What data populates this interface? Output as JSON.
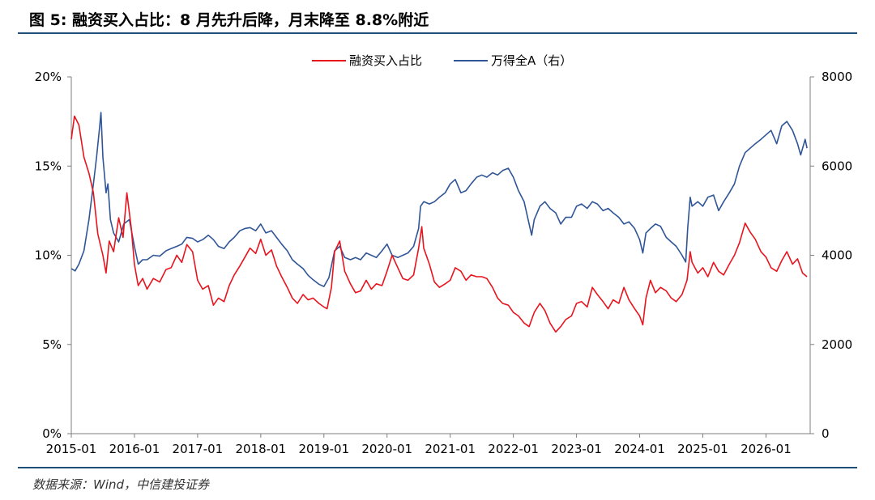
{
  "header": {
    "title": "图 5: 融资买入占比：8 月先升后降，月末降至 8.8%附近"
  },
  "footer": {
    "source": "数据来源：Wind，中信建投证券"
  },
  "chart_data": {
    "type": "line",
    "title": "",
    "xlabel": "",
    "ylabel": "",
    "y2label": "",
    "x_ticks": [
      "2015-01",
      "2016-01",
      "2017-01",
      "2018-01",
      "2019-01",
      "2020-01",
      "2021-01",
      "2022-01",
      "2023-01",
      "2024-01",
      "2025-01",
      "2026-01"
    ],
    "x_range": [
      2015.0,
      2026.7
    ],
    "y_left": {
      "ticks": [
        "0%",
        "5%",
        "10%",
        "15%",
        "20%"
      ],
      "range": [
        0,
        20
      ],
      "unit": "%"
    },
    "y_right": {
      "ticks": [
        "0",
        "2000",
        "4000",
        "6000",
        "8000"
      ],
      "range": [
        0,
        8000
      ]
    },
    "legend": {
      "placement": "top-center"
    },
    "grid": false,
    "series": [
      {
        "name": "融资买入占比",
        "axis": "left",
        "color": "#e8141e",
        "points": [
          [
            2015.0,
            16.5
          ],
          [
            2015.05,
            17.8
          ],
          [
            2015.12,
            17.3
          ],
          [
            2015.2,
            15.5
          ],
          [
            2015.28,
            14.6
          ],
          [
            2015.35,
            13.5
          ],
          [
            2015.42,
            11.2
          ],
          [
            2015.5,
            10.0
          ],
          [
            2015.55,
            9.0
          ],
          [
            2015.6,
            10.8
          ],
          [
            2015.67,
            10.2
          ],
          [
            2015.75,
            12.1
          ],
          [
            2015.82,
            11.0
          ],
          [
            2015.88,
            13.5
          ],
          [
            2015.95,
            11.5
          ],
          [
            2016.0,
            9.5
          ],
          [
            2016.06,
            8.3
          ],
          [
            2016.13,
            8.7
          ],
          [
            2016.2,
            8.1
          ],
          [
            2016.3,
            8.7
          ],
          [
            2016.4,
            8.5
          ],
          [
            2016.5,
            9.2
          ],
          [
            2016.58,
            9.3
          ],
          [
            2016.67,
            10.0
          ],
          [
            2016.75,
            9.6
          ],
          [
            2016.83,
            10.6
          ],
          [
            2016.92,
            10.2
          ],
          [
            2017.0,
            8.6
          ],
          [
            2017.08,
            8.1
          ],
          [
            2017.17,
            8.3
          ],
          [
            2017.25,
            7.2
          ],
          [
            2017.33,
            7.6
          ],
          [
            2017.42,
            7.4
          ],
          [
            2017.5,
            8.3
          ],
          [
            2017.58,
            8.9
          ],
          [
            2017.67,
            9.4
          ],
          [
            2017.75,
            9.9
          ],
          [
            2017.83,
            10.4
          ],
          [
            2017.92,
            10.1
          ],
          [
            2018.0,
            10.9
          ],
          [
            2018.08,
            10.0
          ],
          [
            2018.17,
            10.3
          ],
          [
            2018.25,
            9.4
          ],
          [
            2018.33,
            8.8
          ],
          [
            2018.42,
            8.2
          ],
          [
            2018.5,
            7.6
          ],
          [
            2018.58,
            7.3
          ],
          [
            2018.67,
            7.8
          ],
          [
            2018.75,
            7.5
          ],
          [
            2018.83,
            7.6
          ],
          [
            2018.92,
            7.3
          ],
          [
            2019.0,
            7.1
          ],
          [
            2019.05,
            7.0
          ],
          [
            2019.12,
            8.2
          ],
          [
            2019.17,
            10.2
          ],
          [
            2019.25,
            10.8
          ],
          [
            2019.33,
            9.1
          ],
          [
            2019.42,
            8.4
          ],
          [
            2019.5,
            7.9
          ],
          [
            2019.58,
            8.0
          ],
          [
            2019.67,
            8.6
          ],
          [
            2019.75,
            8.1
          ],
          [
            2019.83,
            8.4
          ],
          [
            2019.92,
            8.3
          ],
          [
            2020.0,
            9.1
          ],
          [
            2020.08,
            10.0
          ],
          [
            2020.17,
            9.3
          ],
          [
            2020.25,
            8.7
          ],
          [
            2020.33,
            8.6
          ],
          [
            2020.42,
            8.9
          ],
          [
            2020.5,
            10.4
          ],
          [
            2020.55,
            11.6
          ],
          [
            2020.58,
            10.4
          ],
          [
            2020.67,
            9.5
          ],
          [
            2020.75,
            8.5
          ],
          [
            2020.83,
            8.2
          ],
          [
            2020.92,
            8.4
          ],
          [
            2021.0,
            8.6
          ],
          [
            2021.08,
            9.3
          ],
          [
            2021.17,
            9.1
          ],
          [
            2021.25,
            8.6
          ],
          [
            2021.33,
            8.9
          ],
          [
            2021.42,
            8.8
          ],
          [
            2021.5,
            8.8
          ],
          [
            2021.58,
            8.7
          ],
          [
            2021.67,
            8.2
          ],
          [
            2021.75,
            7.6
          ],
          [
            2021.83,
            7.3
          ],
          [
            2021.92,
            7.2
          ],
          [
            2022.0,
            6.8
          ],
          [
            2022.08,
            6.6
          ],
          [
            2022.17,
            6.2
          ],
          [
            2022.25,
            6.0
          ],
          [
            2022.33,
            6.8
          ],
          [
            2022.42,
            7.3
          ],
          [
            2022.5,
            6.9
          ],
          [
            2022.58,
            6.2
          ],
          [
            2022.67,
            5.7
          ],
          [
            2022.75,
            6.0
          ],
          [
            2022.83,
            6.4
          ],
          [
            2022.92,
            6.6
          ],
          [
            2023.0,
            7.3
          ],
          [
            2023.08,
            7.4
          ],
          [
            2023.17,
            7.1
          ],
          [
            2023.25,
            8.2
          ],
          [
            2023.33,
            7.8
          ],
          [
            2023.42,
            7.4
          ],
          [
            2023.5,
            7.0
          ],
          [
            2023.58,
            7.5
          ],
          [
            2023.67,
            7.3
          ],
          [
            2023.75,
            8.2
          ],
          [
            2023.83,
            7.5
          ],
          [
            2023.92,
            7.0
          ],
          [
            2024.0,
            6.6
          ],
          [
            2024.05,
            6.1
          ],
          [
            2024.1,
            7.6
          ],
          [
            2024.17,
            8.6
          ],
          [
            2024.25,
            7.9
          ],
          [
            2024.33,
            8.2
          ],
          [
            2024.42,
            8.0
          ],
          [
            2024.5,
            7.6
          ],
          [
            2024.58,
            7.4
          ],
          [
            2024.67,
            7.8
          ],
          [
            2024.75,
            8.6
          ],
          [
            2024.8,
            10.2
          ],
          [
            2024.83,
            9.6
          ],
          [
            2024.92,
            9.0
          ],
          [
            2025.0,
            9.3
          ],
          [
            2025.08,
            8.8
          ],
          [
            2025.17,
            9.6
          ],
          [
            2025.25,
            9.1
          ],
          [
            2025.33,
            8.9
          ],
          [
            2025.42,
            9.5
          ],
          [
            2025.5,
            10.0
          ],
          [
            2025.58,
            10.7
          ],
          [
            2025.67,
            11.8
          ],
          [
            2025.75,
            11.3
          ],
          [
            2025.83,
            10.9
          ],
          [
            2025.92,
            10.2
          ],
          [
            2026.0,
            9.9
          ],
          [
            2026.08,
            9.3
          ],
          [
            2026.17,
            9.1
          ],
          [
            2026.25,
            9.7
          ],
          [
            2026.33,
            10.2
          ],
          [
            2026.42,
            9.5
          ],
          [
            2026.5,
            9.8
          ],
          [
            2026.58,
            9.0
          ],
          [
            2026.65,
            8.8
          ]
        ]
      },
      {
        "name": "万得全A（右）",
        "axis": "right",
        "color": "#2f5597",
        "points": [
          [
            2015.0,
            3700
          ],
          [
            2015.06,
            3650
          ],
          [
            2015.12,
            3800
          ],
          [
            2015.2,
            4100
          ],
          [
            2015.28,
            4800
          ],
          [
            2015.35,
            5600
          ],
          [
            2015.4,
            6200
          ],
          [
            2015.45,
            6900
          ],
          [
            2015.47,
            7200
          ],
          [
            2015.5,
            6200
          ],
          [
            2015.55,
            5400
          ],
          [
            2015.58,
            5600
          ],
          [
            2015.62,
            4800
          ],
          [
            2015.67,
            4500
          ],
          [
            2015.75,
            4300
          ],
          [
            2015.83,
            4700
          ],
          [
            2015.92,
            4800
          ],
          [
            2016.0,
            4200
          ],
          [
            2016.06,
            3800
          ],
          [
            2016.13,
            3900
          ],
          [
            2016.2,
            3900
          ],
          [
            2016.3,
            4000
          ],
          [
            2016.4,
            3980
          ],
          [
            2016.5,
            4100
          ],
          [
            2016.58,
            4150
          ],
          [
            2016.67,
            4200
          ],
          [
            2016.75,
            4250
          ],
          [
            2016.83,
            4400
          ],
          [
            2016.92,
            4380
          ],
          [
            2017.0,
            4300
          ],
          [
            2017.08,
            4350
          ],
          [
            2017.17,
            4450
          ],
          [
            2017.25,
            4350
          ],
          [
            2017.33,
            4200
          ],
          [
            2017.42,
            4150
          ],
          [
            2017.5,
            4300
          ],
          [
            2017.58,
            4400
          ],
          [
            2017.67,
            4550
          ],
          [
            2017.75,
            4600
          ],
          [
            2017.83,
            4620
          ],
          [
            2017.92,
            4550
          ],
          [
            2018.0,
            4700
          ],
          [
            2018.08,
            4500
          ],
          [
            2018.17,
            4550
          ],
          [
            2018.25,
            4400
          ],
          [
            2018.33,
            4250
          ],
          [
            2018.42,
            4100
          ],
          [
            2018.5,
            3900
          ],
          [
            2018.58,
            3800
          ],
          [
            2018.67,
            3700
          ],
          [
            2018.75,
            3550
          ],
          [
            2018.83,
            3450
          ],
          [
            2018.92,
            3350
          ],
          [
            2019.0,
            3300
          ],
          [
            2019.08,
            3500
          ],
          [
            2019.17,
            4100
          ],
          [
            2019.25,
            4200
          ],
          [
            2019.33,
            3950
          ],
          [
            2019.42,
            3900
          ],
          [
            2019.5,
            3950
          ],
          [
            2019.58,
            3900
          ],
          [
            2019.67,
            4050
          ],
          [
            2019.75,
            4000
          ],
          [
            2019.83,
            3950
          ],
          [
            2019.92,
            4100
          ],
          [
            2020.0,
            4250
          ],
          [
            2020.08,
            4000
          ],
          [
            2020.17,
            3950
          ],
          [
            2020.25,
            4000
          ],
          [
            2020.33,
            4050
          ],
          [
            2020.42,
            4200
          ],
          [
            2020.5,
            4600
          ],
          [
            2020.53,
            5100
          ],
          [
            2020.58,
            5200
          ],
          [
            2020.67,
            5150
          ],
          [
            2020.75,
            5200
          ],
          [
            2020.83,
            5300
          ],
          [
            2020.92,
            5400
          ],
          [
            2021.0,
            5600
          ],
          [
            2021.08,
            5700
          ],
          [
            2021.17,
            5400
          ],
          [
            2021.25,
            5450
          ],
          [
            2021.33,
            5600
          ],
          [
            2021.42,
            5750
          ],
          [
            2021.5,
            5800
          ],
          [
            2021.58,
            5750
          ],
          [
            2021.67,
            5850
          ],
          [
            2021.75,
            5800
          ],
          [
            2021.83,
            5900
          ],
          [
            2021.92,
            5950
          ],
          [
            2022.0,
            5750
          ],
          [
            2022.08,
            5450
          ],
          [
            2022.17,
            5200
          ],
          [
            2022.25,
            4700
          ],
          [
            2022.29,
            4450
          ],
          [
            2022.33,
            4800
          ],
          [
            2022.42,
            5100
          ],
          [
            2022.5,
            5200
          ],
          [
            2022.58,
            5050
          ],
          [
            2022.67,
            4950
          ],
          [
            2022.75,
            4700
          ],
          [
            2022.83,
            4850
          ],
          [
            2022.92,
            4850
          ],
          [
            2023.0,
            5100
          ],
          [
            2023.08,
            5150
          ],
          [
            2023.17,
            5050
          ],
          [
            2023.25,
            5200
          ],
          [
            2023.33,
            5150
          ],
          [
            2023.42,
            5000
          ],
          [
            2023.5,
            5050
          ],
          [
            2023.58,
            4950
          ],
          [
            2023.67,
            4850
          ],
          [
            2023.75,
            4700
          ],
          [
            2023.83,
            4750
          ],
          [
            2023.92,
            4600
          ],
          [
            2024.0,
            4350
          ],
          [
            2024.05,
            4050
          ],
          [
            2024.1,
            4500
          ],
          [
            2024.17,
            4600
          ],
          [
            2024.25,
            4700
          ],
          [
            2024.33,
            4650
          ],
          [
            2024.42,
            4400
          ],
          [
            2024.5,
            4300
          ],
          [
            2024.58,
            4200
          ],
          [
            2024.67,
            4000
          ],
          [
            2024.73,
            3850
          ],
          [
            2024.76,
            4600
          ],
          [
            2024.8,
            5300
          ],
          [
            2024.83,
            5100
          ],
          [
            2024.92,
            5200
          ],
          [
            2025.0,
            5100
          ],
          [
            2025.08,
            5300
          ],
          [
            2025.17,
            5350
          ],
          [
            2025.25,
            5000
          ],
          [
            2025.33,
            5200
          ],
          [
            2025.42,
            5400
          ],
          [
            2025.5,
            5600
          ],
          [
            2025.58,
            6000
          ],
          [
            2025.67,
            6300
          ],
          [
            2025.75,
            6400
          ],
          [
            2025.83,
            6500
          ],
          [
            2025.92,
            6600
          ],
          [
            2026.0,
            6700
          ],
          [
            2026.08,
            6800
          ],
          [
            2026.17,
            6500
          ],
          [
            2026.25,
            6900
          ],
          [
            2026.33,
            7000
          ],
          [
            2026.42,
            6800
          ],
          [
            2026.5,
            6500
          ],
          [
            2026.55,
            6250
          ],
          [
            2026.62,
            6600
          ],
          [
            2026.65,
            6400
          ]
        ]
      }
    ]
  }
}
